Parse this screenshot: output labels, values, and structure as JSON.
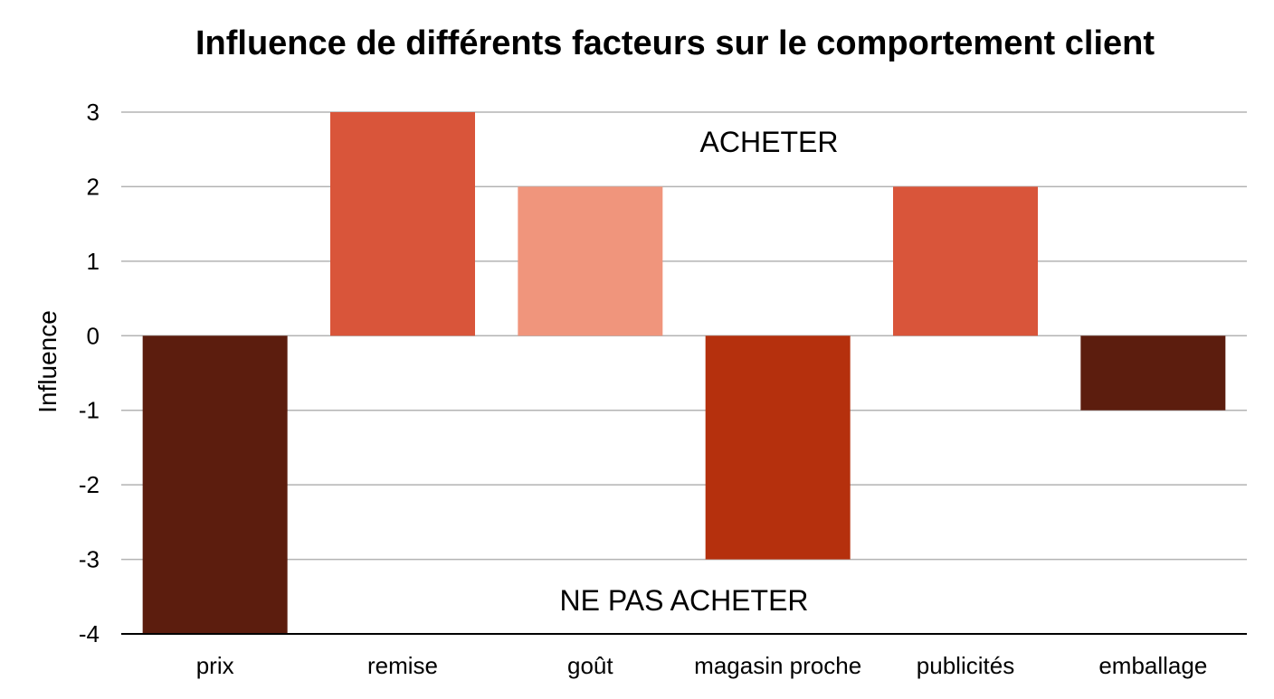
{
  "chart_data": {
    "type": "bar",
    "title": "Influence de différents facteurs sur le comportement client",
    "xlabel": "",
    "ylabel": "Influence",
    "ylim": [
      -4,
      3
    ],
    "yticks": [
      "3",
      "2",
      "1",
      "0",
      "-1",
      "-2",
      "-3",
      "-4"
    ],
    "grid": true,
    "categories": [
      "prix",
      "remise",
      "goût",
      "magasin proche",
      "publicités",
      "emballage"
    ],
    "values": [
      -4,
      3,
      2,
      -3,
      2,
      -1
    ],
    "bar_colors": [
      "#5c1d0e",
      "#d9553a",
      "#f0957c",
      "#b5300d",
      "#d9553a",
      "#5c1d0e"
    ],
    "annotations": {
      "upper": "ACHETER",
      "lower": "NE PAS ACHETER"
    }
  }
}
